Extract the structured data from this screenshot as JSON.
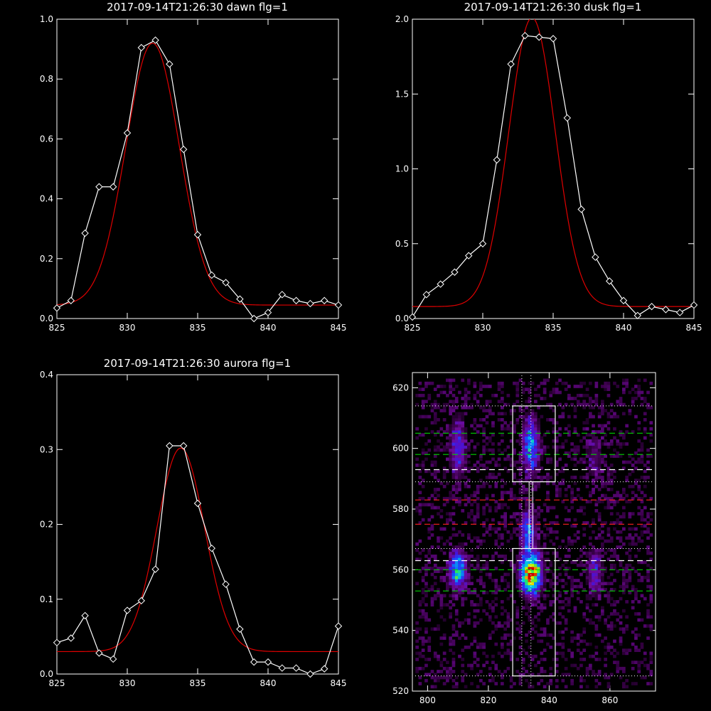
{
  "colors": {
    "background": "#000000",
    "data_line": "#ffffff",
    "fit_line": "#e00000",
    "green_line": "#00d000",
    "red_line": "#ff2020",
    "white_line": "#ffffff"
  },
  "chart_data": [
    {
      "type": "line",
      "title": "2017-09-14T21:26:30 dawn flg=1",
      "xlim": [
        825,
        845
      ],
      "ylim": [
        0,
        1.0
      ],
      "xticks": [
        "825",
        "830",
        "835",
        "840",
        "845"
      ],
      "yticks": [
        "0.0",
        "0.2",
        "0.4",
        "0.6",
        "0.8",
        "1.0"
      ],
      "series": [
        {
          "role": "data",
          "markers": "diamond",
          "x": [
            825,
            826,
            827,
            828,
            829,
            830,
            831,
            832,
            833,
            834,
            835,
            836,
            837,
            838,
            839,
            840,
            841,
            842,
            843,
            844,
            845
          ],
          "y": [
            0.035,
            0.06,
            0.285,
            0.44,
            0.44,
            0.62,
            0.905,
            0.93,
            0.85,
            0.565,
            0.28,
            0.145,
            0.12,
            0.065,
            0.0,
            0.02,
            0.08,
            0.06,
            0.05,
            0.06,
            0.045
          ]
        },
        {
          "role": "fit",
          "gaussian": {
            "amp": 0.875,
            "center": 831.8,
            "sigma": 1.9,
            "base": 0.045
          }
        }
      ]
    },
    {
      "type": "line",
      "title": "2017-09-14T21:26:30 dusk flg=1",
      "xlim": [
        825,
        845
      ],
      "ylim": [
        0,
        2.0
      ],
      "xticks": [
        "825",
        "830",
        "835",
        "840",
        "845"
      ],
      "yticks": [
        "0.0",
        "0.5",
        "1.0",
        "1.5",
        "2.0"
      ],
      "series": [
        {
          "role": "data",
          "markers": "diamond",
          "x": [
            825,
            826,
            827,
            828,
            829,
            830,
            831,
            832,
            833,
            834,
            835,
            836,
            837,
            838,
            839,
            840,
            841,
            842,
            843,
            844,
            845
          ],
          "y": [
            0.01,
            0.16,
            0.23,
            0.31,
            0.42,
            0.5,
            1.06,
            1.7,
            1.89,
            1.88,
            1.87,
            1.34,
            0.73,
            0.41,
            0.25,
            0.12,
            0.02,
            0.08,
            0.06,
            0.04,
            0.09
          ]
        },
        {
          "role": "fit",
          "gaussian": {
            "amp": 1.93,
            "center": 833.5,
            "sigma": 1.65,
            "base": 0.08
          }
        }
      ]
    },
    {
      "type": "line",
      "title": "2017-09-14T21:26:30 aurora flg=1",
      "xlim": [
        825,
        845
      ],
      "ylim": [
        0,
        0.4
      ],
      "xticks": [
        "825",
        "830",
        "835",
        "840",
        "845"
      ],
      "yticks": [
        "0.0",
        "0.1",
        "0.2",
        "0.3",
        "0.4"
      ],
      "series": [
        {
          "role": "data",
          "markers": "diamond",
          "x": [
            825,
            826,
            827,
            828,
            829,
            830,
            831,
            832,
            833,
            834,
            835,
            836,
            837,
            838,
            839,
            840,
            841,
            842,
            843,
            844,
            845
          ],
          "y": [
            0.042,
            0.048,
            0.078,
            0.028,
            0.02,
            0.085,
            0.098,
            0.14,
            0.305,
            0.305,
            0.228,
            0.168,
            0.12,
            0.06,
            0.016,
            0.016,
            0.008,
            0.008,
            0.0,
            0.007,
            0.064
          ]
        },
        {
          "role": "fit",
          "gaussian": {
            "amp": 0.272,
            "center": 833.8,
            "sigma": 1.7,
            "base": 0.03
          }
        }
      ]
    },
    {
      "type": "heatmap",
      "title": "",
      "xlim": [
        795,
        875
      ],
      "ylim": [
        520,
        625
      ],
      "xticks": [
        "800",
        "820",
        "840",
        "860"
      ],
      "yticks": [
        "520",
        "540",
        "560",
        "580",
        "600",
        "620"
      ],
      "blobs": [
        {
          "x": 834,
          "y": 559,
          "sx": 2.2,
          "sy": 4.5,
          "amp": 1.0
        },
        {
          "x": 833,
          "y": 573,
          "sx": 1.6,
          "sy": 4.0,
          "amp": 0.45
        },
        {
          "x": 834,
          "y": 601,
          "sx": 1.8,
          "sy": 6.0,
          "amp": 0.48
        },
        {
          "x": 810,
          "y": 560,
          "sx": 1.8,
          "sy": 4.0,
          "amp": 0.62
        },
        {
          "x": 810,
          "y": 600,
          "sx": 1.7,
          "sy": 6.5,
          "amp": 0.32
        },
        {
          "x": 855,
          "y": 559,
          "sx": 1.6,
          "sy": 5.0,
          "amp": 0.28
        },
        {
          "x": 855,
          "y": 598,
          "sx": 2.0,
          "sy": 6.0,
          "amp": 0.14
        }
      ],
      "boxes": [
        {
          "x0": 828,
          "x1": 842,
          "y0": 589,
          "y1": 614
        },
        {
          "x0": 828,
          "x1": 842,
          "y0": 525,
          "y1": 567
        }
      ],
      "connector": {
        "x": 834,
        "y0": 567,
        "y1": 589
      },
      "vlines_dotted": [
        831,
        834
      ],
      "hlines_dotted_white": [
        525,
        567,
        589,
        614
      ],
      "hlines_dashed": [
        {
          "y": 605,
          "color": "green"
        },
        {
          "y": 598,
          "color": "green"
        },
        {
          "y": 593,
          "color": "white"
        },
        {
          "y": 583,
          "color": "red"
        },
        {
          "y": 575,
          "color": "red"
        },
        {
          "y": 563,
          "color": "white"
        },
        {
          "y": 560,
          "color": "green"
        },
        {
          "y": 553,
          "color": "green"
        }
      ]
    }
  ]
}
